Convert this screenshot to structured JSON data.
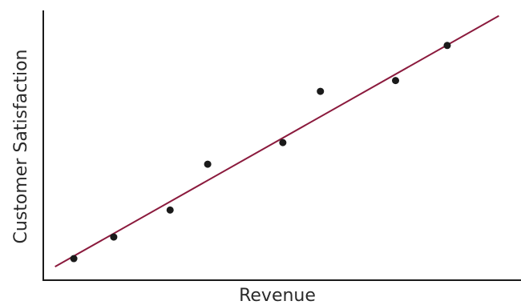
{
  "chart_data": {
    "type": "scatter",
    "title": "",
    "xlabel": "Revenue",
    "ylabel": "Customer Satisfaction",
    "xlim": [
      0,
      10
    ],
    "ylim": [
      0,
      10
    ],
    "grid": false,
    "legend": "none",
    "series": [
      {
        "kind": "points",
        "x": [
          0.65,
          1.5,
          2.7,
          3.5,
          5.1,
          5.9,
          7.5,
          8.6
        ],
        "y": [
          0.8,
          1.6,
          2.6,
          4.3,
          5.1,
          7.0,
          7.4,
          8.7
        ]
      },
      {
        "kind": "trend-line",
        "x": [
          0.25,
          9.7
        ],
        "y": [
          0.5,
          9.8
        ]
      }
    ],
    "colors": {
      "points": "#1a1a1a",
      "trend_line": "#8b1a3d",
      "axis": "#1a1a1a"
    }
  }
}
